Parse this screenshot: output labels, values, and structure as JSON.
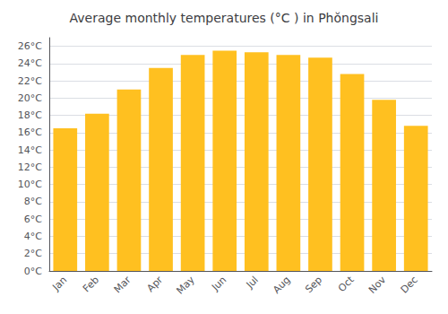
{
  "chart_data": {
    "type": "bar",
    "title": "Average monthly temperatures (°C ) in Phŏngsali",
    "categories": [
      "Jan",
      "Feb",
      "Mar",
      "Apr",
      "May",
      "Jun",
      "Jul",
      "Aug",
      "Sep",
      "Oct",
      "Nov",
      "Dec"
    ],
    "values": [
      16.5,
      18.2,
      21.0,
      23.5,
      25.0,
      25.5,
      25.3,
      25.0,
      24.7,
      22.8,
      19.8,
      16.8
    ],
    "color": "#FFC020",
    "ylim": [
      0,
      27
    ],
    "yticks": [
      {
        "value": 0,
        "label": "0°C"
      },
      {
        "value": 2,
        "label": "2°C"
      },
      {
        "value": 4,
        "label": "4°C"
      },
      {
        "value": 6,
        "label": "6°C"
      },
      {
        "value": 8,
        "label": "8°C"
      },
      {
        "value": 10,
        "label": "10°C"
      },
      {
        "value": 12,
        "label": "12°C"
      },
      {
        "value": 14,
        "label": "14°C"
      },
      {
        "value": 16,
        "label": "16°C"
      },
      {
        "value": 18,
        "label": "18°C"
      },
      {
        "value": 20,
        "label": "20°C"
      },
      {
        "value": 22,
        "label": "22°C"
      },
      {
        "value": 24,
        "label": "24°C"
      },
      {
        "value": 26,
        "label": "26°C"
      }
    ],
    "grid": true
  }
}
